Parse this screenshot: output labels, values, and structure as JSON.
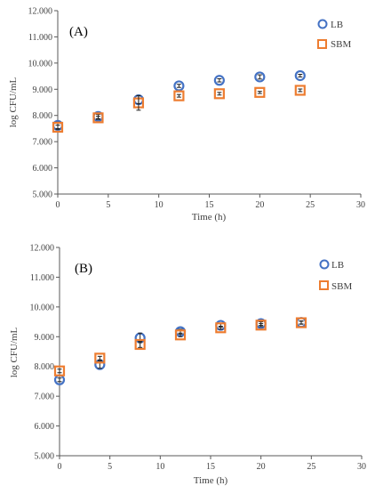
{
  "colors": {
    "lb": "#4472C4",
    "sbm": "#ED7D31",
    "axis": "#595959",
    "text": "#404040",
    "error_bar": "#222222"
  },
  "chart_data": [
    {
      "type": "scatter",
      "panel_label": "(A)",
      "xlabel": "Time (h)",
      "ylabel": "log CFU/mL",
      "xlim": [
        0,
        30
      ],
      "ylim": [
        5,
        12
      ],
      "x_ticks": [
        "0",
        "5",
        "10",
        "15",
        "20",
        "25",
        "30"
      ],
      "y_ticks": [
        "5.000",
        "6.000",
        "7.000",
        "8.000",
        "9.000",
        "10.000",
        "11.000",
        "12.000"
      ],
      "grid": false,
      "legend_position": "top-right",
      "series": [
        {
          "name": "LB",
          "marker": "circle",
          "color": "#4472C4",
          "points": [
            {
              "x": 0,
              "y": 7.62,
              "err": 0.12
            },
            {
              "x": 4,
              "y": 7.96,
              "err": 0.08
            },
            {
              "x": 8,
              "y": 8.6,
              "err": 0.15
            },
            {
              "x": 12,
              "y": 9.13,
              "err": 0.06
            },
            {
              "x": 16,
              "y": 9.34,
              "err": 0.06
            },
            {
              "x": 20,
              "y": 9.47,
              "err": 0.08
            },
            {
              "x": 24,
              "y": 9.52,
              "err": 0.05
            }
          ]
        },
        {
          "name": "SBM",
          "marker": "square",
          "color": "#ED7D31",
          "points": [
            {
              "x": 0,
              "y": 7.55,
              "err": 0.08
            },
            {
              "x": 4,
              "y": 7.91,
              "err": 0.06
            },
            {
              "x": 8,
              "y": 8.48,
              "err": 0.28
            },
            {
              "x": 12,
              "y": 8.75,
              "err": 0.05
            },
            {
              "x": 16,
              "y": 8.83,
              "err": 0.05
            },
            {
              "x": 20,
              "y": 8.88,
              "err": 0.04
            },
            {
              "x": 24,
              "y": 8.96,
              "err": 0.05
            }
          ]
        }
      ]
    },
    {
      "type": "scatter",
      "panel_label": "(B)",
      "xlabel": "Time (h)",
      "ylabel": "log CFU/mL",
      "xlim": [
        0,
        30
      ],
      "ylim": [
        5,
        12
      ],
      "x_ticks": [
        "0",
        "5",
        "10",
        "15",
        "20",
        "25",
        "30"
      ],
      "y_ticks": [
        "5.000",
        "6.000",
        "7.000",
        "8.000",
        "9.000",
        "10.000",
        "11.000",
        "12.000"
      ],
      "grid": false,
      "legend_position": "top-right",
      "series": [
        {
          "name": "LB",
          "marker": "circle",
          "color": "#4472C4",
          "points": [
            {
              "x": 0,
              "y": 7.55,
              "err": 0.06
            },
            {
              "x": 4,
              "y": 8.06,
              "err": 0.12
            },
            {
              "x": 8,
              "y": 8.96,
              "err": 0.16
            },
            {
              "x": 12,
              "y": 9.17,
              "err": 0.08
            },
            {
              "x": 16,
              "y": 9.38,
              "err": 0.06
            },
            {
              "x": 20,
              "y": 9.44,
              "err": 0.06
            },
            {
              "x": 24,
              "y": 9.48,
              "err": 0.05
            }
          ]
        },
        {
          "name": "SBM",
          "marker": "square",
          "color": "#ED7D31",
          "points": [
            {
              "x": 0,
              "y": 7.85,
              "err": 0.06
            },
            {
              "x": 4,
              "y": 8.28,
              "err": 0.06
            },
            {
              "x": 8,
              "y": 8.74,
              "err": 0.1
            },
            {
              "x": 12,
              "y": 9.06,
              "err": 0.06
            },
            {
              "x": 16,
              "y": 9.3,
              "err": 0.05
            },
            {
              "x": 20,
              "y": 9.39,
              "err": 0.05
            },
            {
              "x": 24,
              "y": 9.47,
              "err": 0.05
            }
          ]
        }
      ]
    }
  ]
}
